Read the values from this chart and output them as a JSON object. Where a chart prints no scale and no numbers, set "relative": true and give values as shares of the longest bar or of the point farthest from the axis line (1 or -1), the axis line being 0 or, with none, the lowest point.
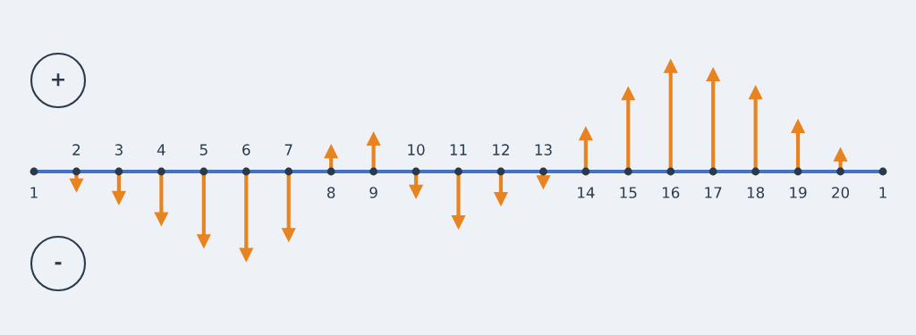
{
  "chart_data": {
    "type": "lollipop",
    "relative": true,
    "marker": "triangle",
    "line_style": "solid",
    "categories": [
      "1",
      "2",
      "3",
      "4",
      "5",
      "6",
      "7",
      "8",
      "9",
      "10",
      "11",
      "12",
      "13",
      "14",
      "15",
      "16",
      "17",
      "18",
      "19",
      "20",
      "1"
    ],
    "series": [
      {
        "type": "scatter",
        "color": "#2b3a4a",
        "marker": "circle",
        "values": [
          0,
          0,
          0,
          0,
          0,
          0,
          0,
          0,
          0,
          0,
          0,
          0,
          0,
          0,
          0,
          0,
          0,
          0,
          0,
          0,
          0
        ]
      },
      {
        "color": "#e8831f",
        "values": [
          null,
          -0.13,
          -0.25,
          -0.45,
          -0.66,
          -0.79,
          -0.6,
          0.19,
          0.31,
          -0.19,
          -0.48,
          -0.26,
          -0.1,
          0.36,
          0.74,
          1,
          0.92,
          0.75,
          0.43,
          0.16,
          null
        ]
      }
    ],
    "annotations": [
      "+",
      "-"
    ]
  }
}
